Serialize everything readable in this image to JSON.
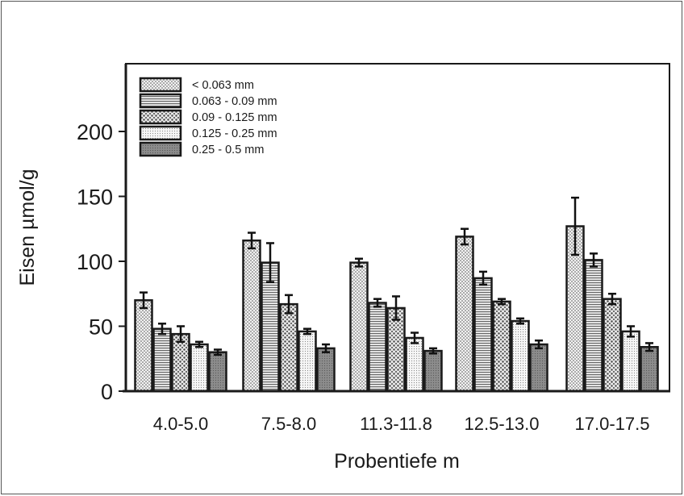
{
  "chart_data": {
    "type": "bar",
    "xlabel": "Probentiefe  m",
    "ylabel": "Eisen µmol/g",
    "ylim": [
      0,
      250
    ],
    "yticks": [
      0,
      50,
      100,
      150,
      200
    ],
    "categories": [
      "4.0-5.0",
      "7.5-8.0",
      "11.3-11.8",
      "12.5-13.0",
      "17.0-17.5"
    ],
    "legend_position": "top-left",
    "grid": false,
    "error_bars": true,
    "series": [
      {
        "name": "< 0.063 mm",
        "values": [
          70,
          116,
          99,
          119,
          127
        ],
        "errors": [
          6,
          6,
          3,
          6,
          22
        ],
        "pattern": "dots-fine",
        "color": "#dcdcdc"
      },
      {
        "name": "0.063 - 0.09 mm",
        "values": [
          48,
          99,
          68,
          87,
          101
        ],
        "errors": [
          4,
          15,
          3,
          5,
          5
        ],
        "pattern": "hlines",
        "color": "#c8c8c8"
      },
      {
        "name": "0.09 - 0.125 mm",
        "values": [
          44,
          67,
          64,
          69,
          71
        ],
        "errors": [
          6,
          7,
          9,
          2,
          4
        ],
        "pattern": "dots-coarse",
        "color": "#bdbdbd"
      },
      {
        "name": "0.125 - 0.25 mm",
        "values": [
          36,
          46,
          41,
          54,
          46
        ],
        "errors": [
          2,
          2,
          4,
          2,
          4
        ],
        "pattern": "dots-light",
        "color": "#e4e4e4"
      },
      {
        "name": "0.25 - 0.5 mm",
        "values": [
          30,
          33,
          31,
          36,
          34
        ],
        "errors": [
          2,
          3,
          2,
          3,
          3
        ],
        "pattern": "solid-dark",
        "color": "#8a8a8a"
      }
    ]
  }
}
